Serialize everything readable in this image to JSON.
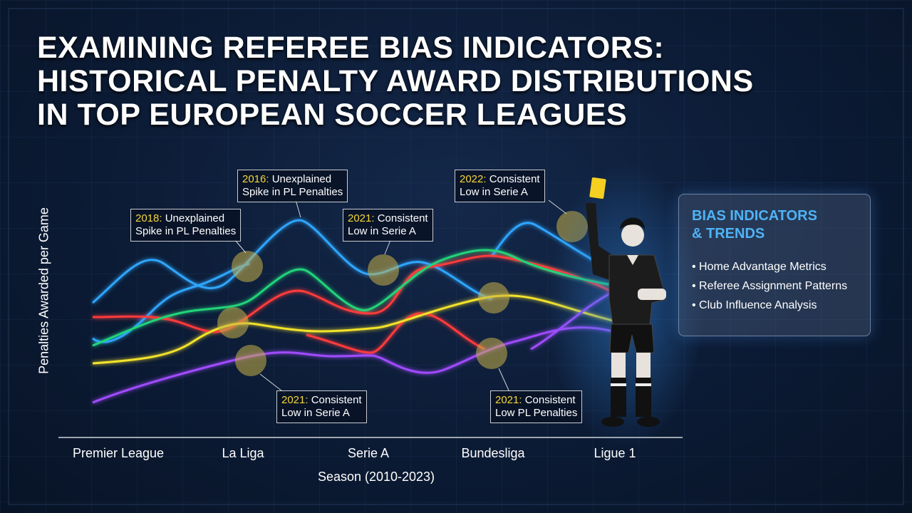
{
  "header": {
    "title_lines": [
      "EXAMINING REFEREE BIAS INDICATORS:",
      "HISTORICAL PENALTY AWARD DISTRIBUTIONS",
      "IN TOP EUROPEAN SOCCER LEAGUES"
    ]
  },
  "chart": {
    "y_axis_label": "Penalties Awarded per Game",
    "x_axis_label": "Season (2010-2023)",
    "categories": [
      "Premier League",
      "La Liga",
      "Serie A",
      "Bundesliga",
      "Ligue 1"
    ],
    "annotations": [
      {
        "year": "2018:",
        "line1": "Unexplained",
        "line2": "Spike in PL Penalties"
      },
      {
        "year": "2016:",
        "line1": "Unexplained",
        "line2": "Spike in PL Penalties"
      },
      {
        "year": "2021:",
        "line1": "Consistent",
        "line2": "Low in Serie A"
      },
      {
        "year": "2022:",
        "line1": "Consistent",
        "line2": "Low in Serie A"
      },
      {
        "year": "2021:",
        "line1": "Consistent",
        "line2": "Low in Serie A"
      },
      {
        "year": "2021:",
        "line1": "Consistent",
        "line2": "Low PL Penalties"
      }
    ]
  },
  "panel": {
    "title_lines": [
      "BIAS INDICATORS",
      "& TRENDS"
    ],
    "items": [
      "Home Advantage Metrics",
      "Referee Assignment Patterns",
      "Club Influence Analysis"
    ]
  }
}
